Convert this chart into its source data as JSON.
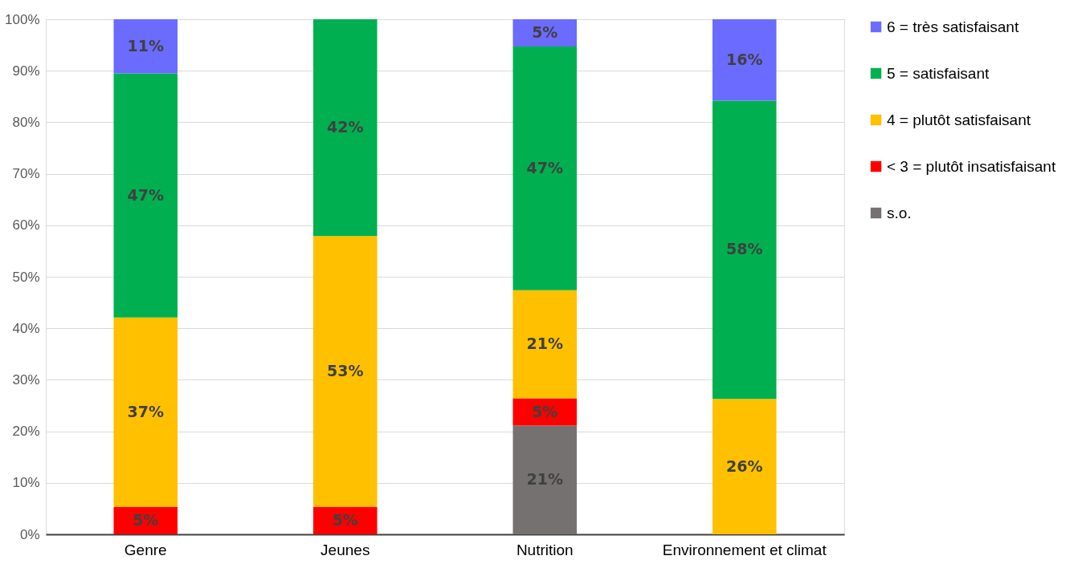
{
  "chart_data": {
    "type": "bar",
    "stacked": true,
    "categories": [
      "Genre",
      "Jeunes",
      "Nutrition",
      "Environnement et climat"
    ],
    "series": [
      {
        "name": "s.o.",
        "color": "#767171",
        "values": [
          null,
          null,
          21.1,
          null
        ],
        "value_labels": [
          null,
          null,
          "21%",
          null
        ]
      },
      {
        "name": "< 3 = plutôt insatisfaisant",
        "color": "#ff0000",
        "values": [
          5.3,
          5.3,
          5.3,
          null
        ],
        "value_labels": [
          "5%",
          "5%",
          "5%",
          null
        ]
      },
      {
        "name": "4 = plutôt satisfaisant",
        "color": "#ffc000",
        "values": [
          36.8,
          52.6,
          21.0,
          26.3
        ],
        "value_labels": [
          "37%",
          "53%",
          "21%",
          "26%"
        ]
      },
      {
        "name": "5 = satisfaisant",
        "color": "#00b050",
        "values": [
          47.4,
          42.1,
          47.3,
          57.9
        ],
        "value_labels": [
          "47%",
          "42%",
          "47%",
          "58%"
        ]
      },
      {
        "name": "6 = très satisfaisant",
        "color": "#6b6bff",
        "values": [
          10.5,
          null,
          5.3,
          15.8
        ],
        "value_labels": [
          "11%",
          null,
          "5%",
          "16%"
        ]
      }
    ],
    "ylim": [
      0,
      100
    ],
    "yticks": [
      {
        "value": 0,
        "label": "0%"
      },
      {
        "value": 10,
        "label": "10%"
      },
      {
        "value": 20,
        "label": "20%"
      },
      {
        "value": 30,
        "label": "30%"
      },
      {
        "value": 40,
        "label": "40%"
      },
      {
        "value": 50,
        "label": "50%"
      },
      {
        "value": 60,
        "label": "60%"
      },
      {
        "value": 70,
        "label": "70%"
      },
      {
        "value": 80,
        "label": "80%"
      },
      {
        "value": 90,
        "label": "90%"
      },
      {
        "value": 100,
        "label": "100%"
      }
    ],
    "grid": "y",
    "legend": "right"
  }
}
